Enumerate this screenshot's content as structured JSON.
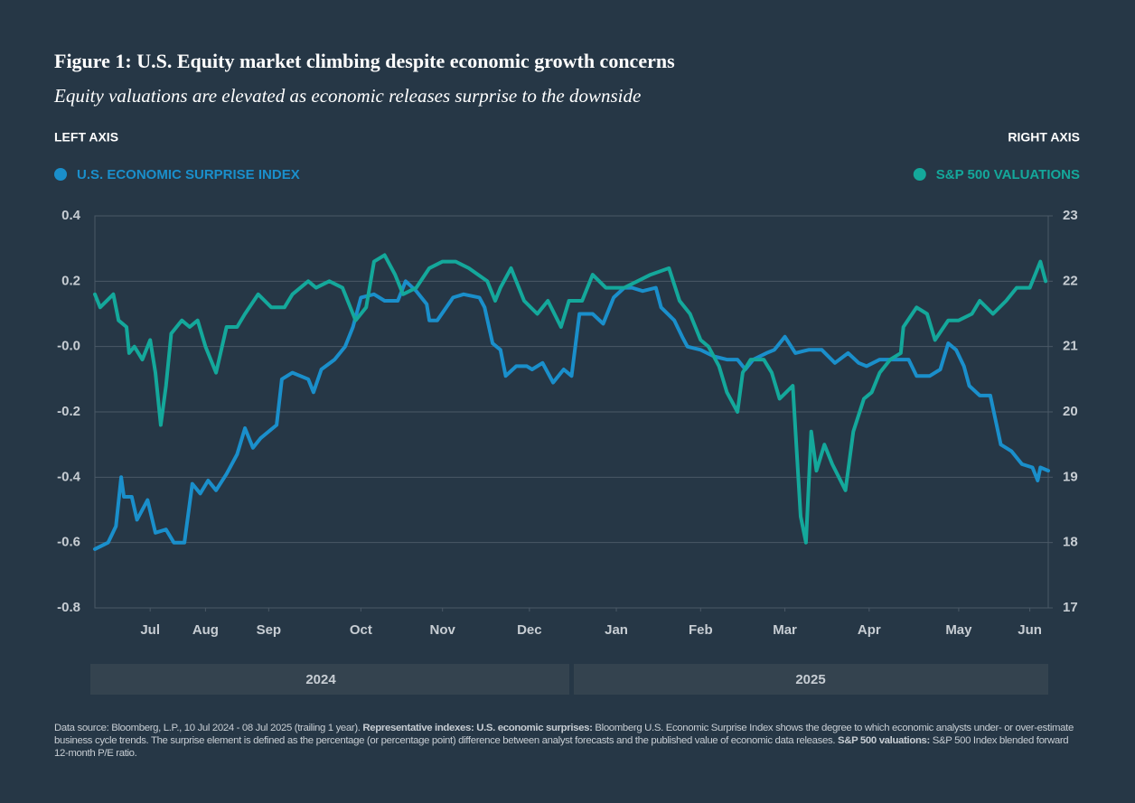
{
  "chart_data": {
    "type": "line",
    "title": "Figure 1: U.S. Equity market climbing despite economic growth concerns",
    "subtitle": "Equity valuations are elevated as economic releases surprise to the downside",
    "left_axis_label": "LEFT AXIS",
    "right_axis_label": "RIGHT AXIS",
    "xlim": [
      0,
      362
    ],
    "xticks": [
      {
        "value": 21,
        "label": "Jul"
      },
      {
        "value": 42,
        "label": "Aug"
      },
      {
        "value": 66,
        "label": "Sep"
      },
      {
        "value": 101,
        "label": "Oct"
      },
      {
        "value": 132,
        "label": "Nov"
      },
      {
        "value": 165,
        "label": "Dec"
      },
      {
        "value": 198,
        "label": "Jan"
      },
      {
        "value": 230,
        "label": "Feb"
      },
      {
        "value": 262,
        "label": "Mar"
      },
      {
        "value": 294,
        "label": "Apr"
      },
      {
        "value": 328,
        "label": "May"
      },
      {
        "value": 355,
        "label": "Jun"
      }
    ],
    "year_labels": [
      "2024",
      "2025"
    ],
    "ylim": [
      -0.8,
      0.4
    ],
    "yticks": [
      -0.8,
      -0.6,
      -0.4,
      -0.2,
      {
        "value": 0,
        "label": "-0.0"
      },
      0.2,
      0.4
    ],
    "y2lim": [
      17,
      23
    ],
    "y2ticks": [
      17,
      18,
      19,
      20,
      21,
      22,
      23
    ],
    "grid": true,
    "series": [
      {
        "name": "U.S. ECONOMIC SURPRISE INDEX",
        "color": "#1a8fcb",
        "axis": "y",
        "x": [
          0,
          5,
          8,
          10,
          11,
          14,
          16,
          20,
          23,
          27,
          30,
          34,
          37,
          40,
          43,
          46,
          50,
          54,
          57,
          60,
          63,
          69,
          71,
          75,
          81,
          83,
          86,
          91,
          95,
          98,
          101,
          106,
          110,
          115,
          118,
          122,
          126,
          127,
          130,
          136,
          140,
          146,
          148,
          151,
          154,
          156,
          160,
          164,
          166,
          170,
          174,
          178,
          181,
          184,
          189,
          193,
          197,
          201,
          204,
          208,
          213,
          215,
          220,
          223,
          225,
          230,
          235,
          240,
          244,
          247,
          250,
          255,
          258,
          262,
          266,
          271,
          276,
          281,
          286,
          290,
          293,
          298,
          304,
          309,
          312,
          317,
          321,
          324,
          327,
          330,
          332,
          336,
          340,
          344,
          348,
          352,
          356,
          358,
          359,
          362
        ],
        "values": [
          -0.62,
          -0.6,
          -0.55,
          -0.4,
          -0.46,
          -0.46,
          -0.53,
          -0.47,
          -0.57,
          -0.56,
          -0.6,
          -0.6,
          -0.42,
          -0.45,
          -0.41,
          -0.44,
          -0.39,
          -0.33,
          -0.25,
          -0.31,
          -0.28,
          -0.24,
          -0.1,
          -0.08,
          -0.1,
          -0.14,
          -0.07,
          -0.04,
          0.0,
          0.06,
          0.15,
          0.16,
          0.14,
          0.14,
          0.2,
          0.17,
          0.13,
          0.08,
          0.08,
          0.15,
          0.16,
          0.15,
          0.12,
          0.01,
          -0.01,
          -0.09,
          -0.06,
          -0.06,
          -0.07,
          -0.05,
          -0.11,
          -0.07,
          -0.09,
          0.1,
          0.1,
          0.07,
          0.15,
          0.18,
          0.18,
          0.17,
          0.18,
          0.12,
          0.08,
          0.03,
          0.0,
          -0.01,
          -0.03,
          -0.04,
          -0.04,
          -0.07,
          -0.04,
          -0.02,
          -0.01,
          0.03,
          -0.02,
          -0.01,
          -0.01,
          -0.05,
          -0.02,
          -0.05,
          -0.06,
          -0.04,
          -0.04,
          -0.04,
          -0.09,
          -0.09,
          -0.07,
          0.01,
          -0.01,
          -0.06,
          -0.12,
          -0.15,
          -0.15,
          -0.3,
          -0.32,
          -0.36,
          -0.37,
          -0.41,
          -0.37,
          -0.38
        ]
      },
      {
        "name": "S&P 500 VALUATIONS",
        "color": "#14a89b",
        "axis": "y2",
        "x": [
          0,
          2,
          7,
          9,
          12,
          13,
          15,
          18,
          21,
          23,
          25,
          27,
          29,
          33,
          36,
          39,
          42,
          46,
          50,
          54,
          57,
          62,
          67,
          72,
          75,
          81,
          84,
          89,
          94,
          99,
          103,
          106,
          110,
          114,
          117,
          122,
          127,
          132,
          137,
          142,
          149,
          152,
          154,
          158,
          163,
          168,
          172,
          177,
          180,
          185,
          189,
          194,
          201,
          206,
          211,
          218,
          222,
          226,
          230,
          233,
          237,
          240,
          244,
          246,
          249,
          254,
          257,
          260,
          265,
          268,
          270,
          272,
          274,
          277,
          280,
          285,
          288,
          292,
          295,
          298,
          302,
          306,
          307,
          312,
          316,
          319,
          324,
          328,
          333,
          336,
          341,
          346,
          350,
          355,
          359,
          361
        ],
        "values": [
          21.8,
          21.6,
          21.8,
          21.4,
          21.3,
          20.9,
          21.0,
          20.8,
          21.1,
          20.6,
          19.8,
          20.4,
          21.2,
          21.4,
          21.3,
          21.4,
          21.0,
          20.6,
          21.3,
          21.3,
          21.5,
          21.8,
          21.6,
          21.6,
          21.8,
          22.0,
          21.9,
          22.0,
          21.9,
          21.4,
          21.6,
          22.3,
          22.4,
          22.1,
          21.8,
          21.9,
          22.2,
          22.3,
          22.3,
          22.2,
          22.0,
          21.7,
          21.9,
          22.2,
          21.7,
          21.5,
          21.7,
          21.3,
          21.7,
          21.7,
          22.1,
          21.9,
          21.9,
          22.0,
          22.1,
          22.2,
          21.7,
          21.5,
          21.1,
          21.0,
          20.7,
          20.3,
          20.0,
          20.6,
          20.8,
          20.8,
          20.6,
          20.2,
          20.4,
          18.4,
          18.0,
          19.7,
          19.1,
          19.5,
          19.2,
          18.8,
          19.7,
          20.2,
          20.3,
          20.6,
          20.8,
          20.9,
          21.3,
          21.6,
          21.5,
          21.1,
          21.4,
          21.4,
          21.5,
          21.7,
          21.5,
          21.7,
          21.9,
          21.9,
          22.3,
          22.0
        ]
      }
    ],
    "source_note": [
      {
        "text": "Data source: Bloomberg, L.P., 10 Jul 2024 - 08 Jul 2025 (trailing 1 year). ",
        "bold": false
      },
      {
        "text": "Representative indexes: U.S. economic surprises:",
        "bold": true
      },
      {
        "text": " Bloomberg U.S. Economic Surprise Index shows the degree to which economic analysts under- or over-estimate business cycle trends. The surprise element is defined as the percentage (or percentage point) difference between analyst forecasts and the published value of economic data releases. ",
        "bold": false
      },
      {
        "text": "S&P 500 valuations:",
        "bold": true
      },
      {
        "text": " S&P 500 Index blended forward 12-month P/E ratio.",
        "bold": false
      }
    ]
  }
}
